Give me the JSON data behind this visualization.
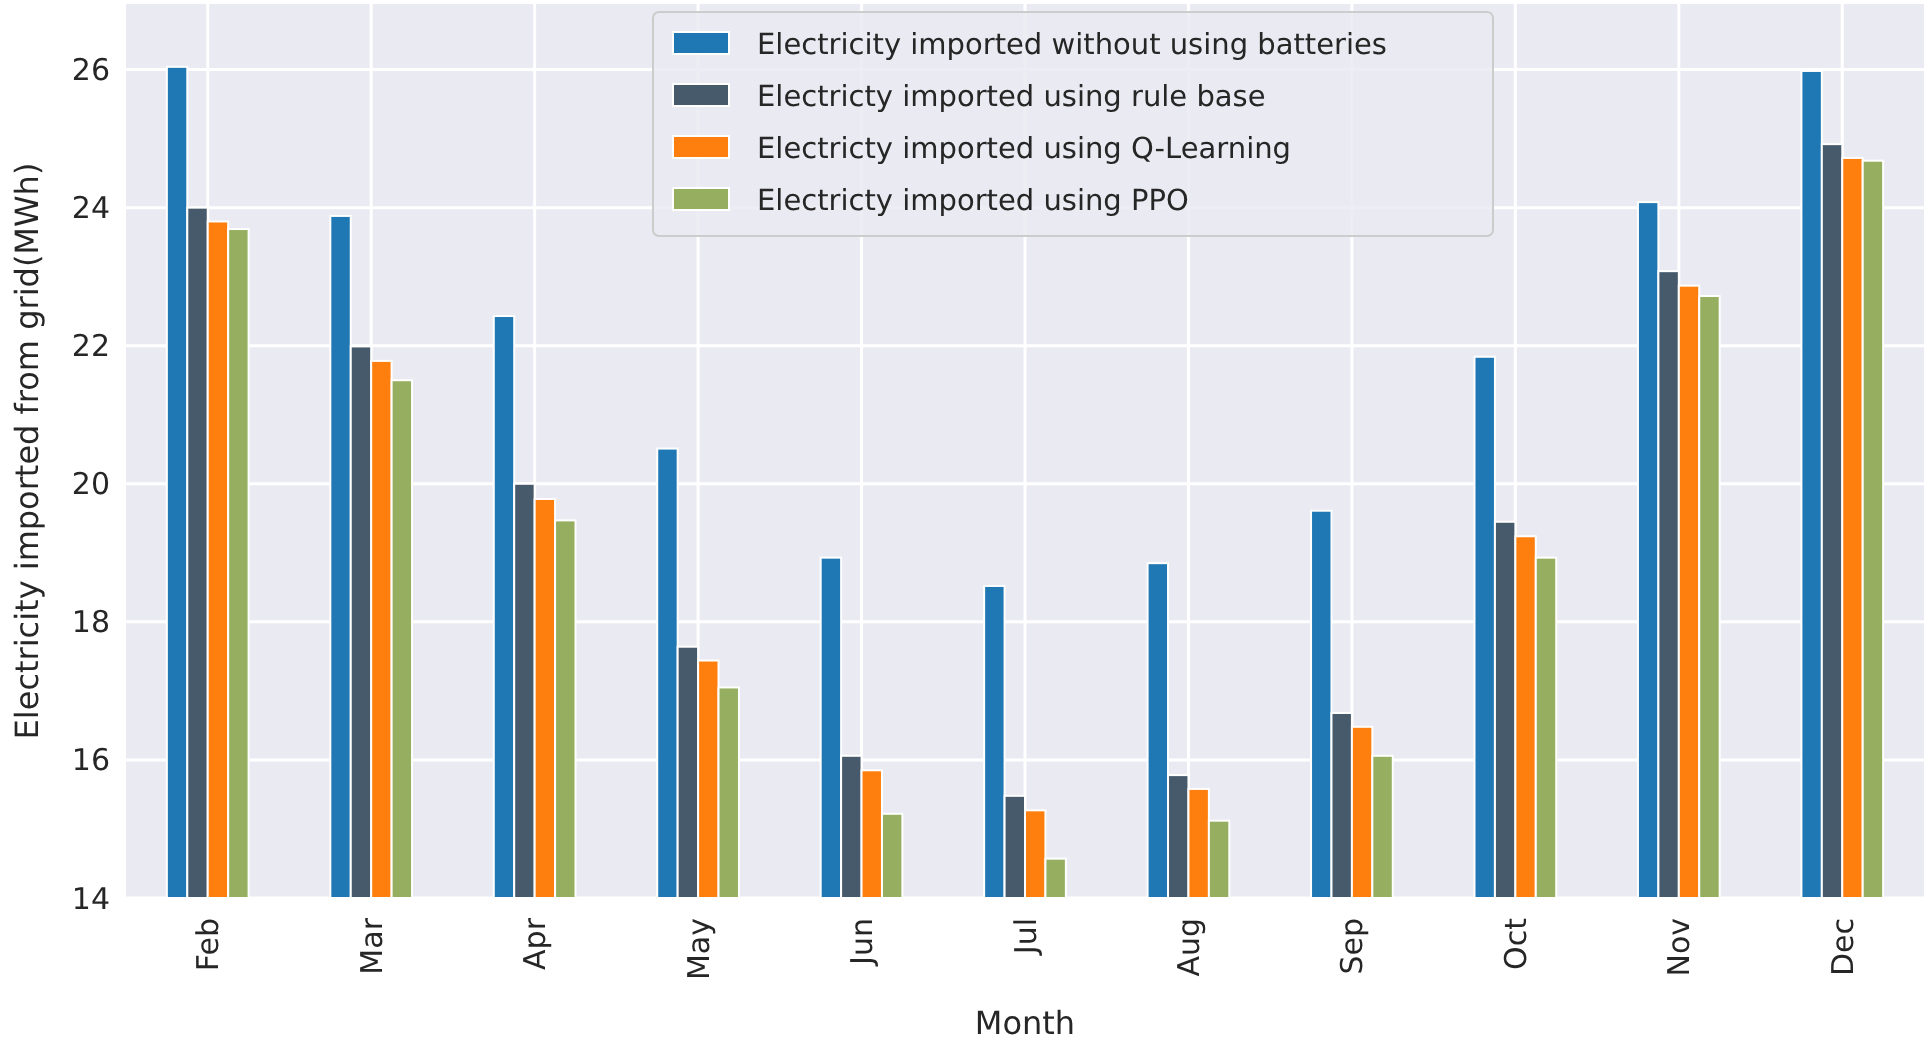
{
  "chart_data": {
    "type": "bar",
    "xlabel": "Month",
    "ylabel": "Electricity imported from grid(MWh)",
    "categories": [
      "Feb",
      "Mar",
      "Apr",
      "May",
      "Jun",
      "Jul",
      "Aug",
      "Sep",
      "Oct",
      "Nov",
      "Dec"
    ],
    "series": [
      {
        "name": "Electricity imported without using batteries",
        "color": "#1f77b4",
        "values": [
          26.04,
          23.88,
          22.43,
          20.51,
          18.93,
          18.52,
          18.85,
          19.61,
          21.84,
          24.08,
          25.98
        ]
      },
      {
        "name": "Electricty imported using rule base",
        "color": "#465a6b",
        "values": [
          24.0,
          21.99,
          20.0,
          17.64,
          16.06,
          15.48,
          15.78,
          16.68,
          19.45,
          23.08,
          24.92
        ]
      },
      {
        "name": "Electricty imported using Q-Learning",
        "color": "#ff7f0e",
        "values": [
          23.8,
          21.78,
          19.78,
          17.44,
          15.85,
          15.27,
          15.58,
          16.48,
          19.24,
          22.87,
          24.72
        ]
      },
      {
        "name": "Electricty imported using PPO",
        "color": "#95ae5f",
        "values": [
          23.69,
          21.5,
          19.47,
          17.05,
          15.22,
          14.57,
          15.12,
          16.06,
          18.93,
          22.72,
          24.68
        ]
      }
    ],
    "ylim": [
      14,
      26.95
    ],
    "yticks": [
      14,
      16,
      18,
      20,
      22,
      24,
      26
    ],
    "grid": true,
    "legend": "top"
  }
}
